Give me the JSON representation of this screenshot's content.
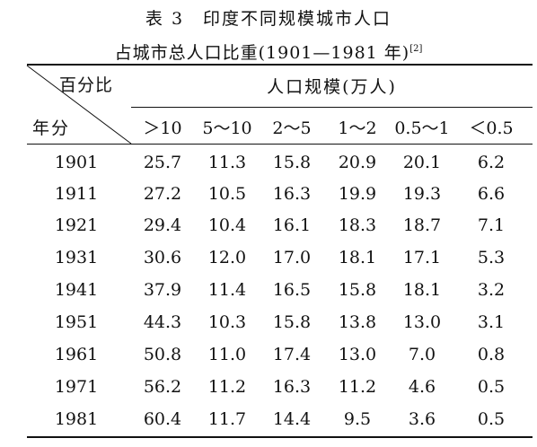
{
  "table": {
    "title_line1": "表 3　印度不同规模城市人口",
    "title_line2": "占城市总人口比重(1901—1981 年)",
    "title_ref": "[2]",
    "stub_top": "百分比",
    "stub_bottom": "年分",
    "group_header": "人口规模(万人)",
    "columns": [
      "＞10",
      "5～10",
      "2～5",
      "1～2",
      "0.5～1",
      "＜0.5"
    ],
    "rows": [
      {
        "year": "1901",
        "values": [
          "25.7",
          "11.3",
          "15.8",
          "20.9",
          "20.1",
          "6.2"
        ]
      },
      {
        "year": "1911",
        "values": [
          "27.2",
          "10.5",
          "16.3",
          "19.9",
          "19.3",
          "6.6"
        ]
      },
      {
        "year": "1921",
        "values": [
          "29.4",
          "10.4",
          "16.1",
          "18.3",
          "18.7",
          "7.1"
        ]
      },
      {
        "year": "1931",
        "values": [
          "30.6",
          "12.0",
          "17.0",
          "18.1",
          "17.1",
          "5.3"
        ]
      },
      {
        "year": "1941",
        "values": [
          "37.9",
          "11.4",
          "16.5",
          "15.8",
          "18.1",
          "3.2"
        ]
      },
      {
        "year": "1951",
        "values": [
          "44.3",
          "10.3",
          "15.8",
          "13.8",
          "13.0",
          "3.1"
        ]
      },
      {
        "year": "1961",
        "values": [
          "50.8",
          "11.0",
          "17.4",
          "13.0",
          "7.0",
          "0.8"
        ]
      },
      {
        "year": "1971",
        "values": [
          "56.2",
          "11.2",
          "16.3",
          "11.2",
          "4.6",
          "0.5"
        ]
      },
      {
        "year": "1981",
        "values": [
          "60.4",
          "11.7",
          "14.4",
          "9.5",
          "3.6",
          "0.5"
        ]
      }
    ]
  }
}
